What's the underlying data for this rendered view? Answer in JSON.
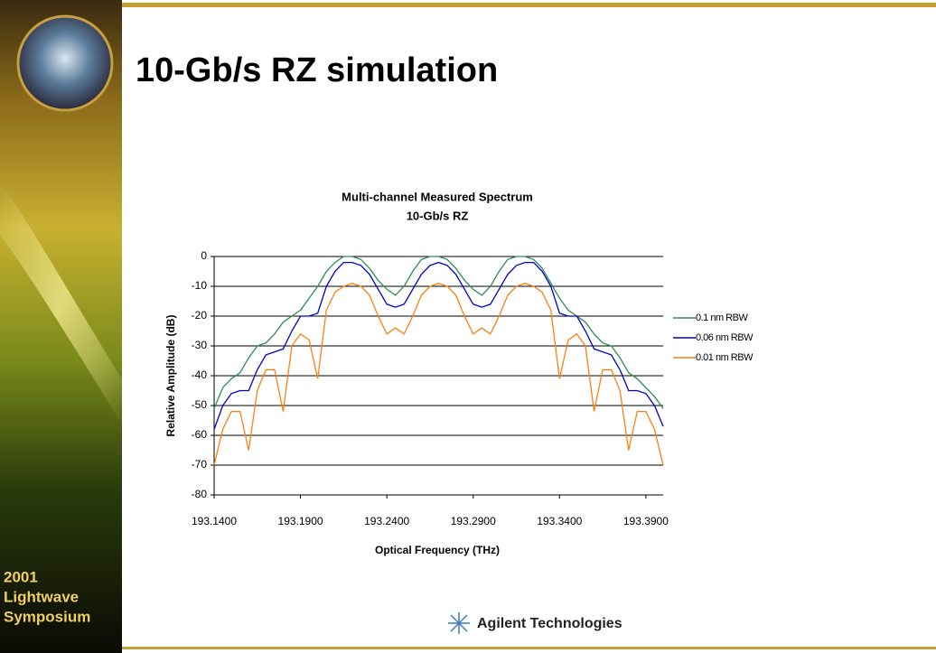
{
  "slide_title": "10-Gb/s RZ simulation",
  "sidebar_text": [
    "2001",
    "Lightwave",
    "Symposium"
  ],
  "footer_logo": "Agilent Technologies",
  "chart_data": {
    "type": "line",
    "title": [
      "Multi-channel Measured Spectrum",
      "10-Gb/s RZ"
    ],
    "x_label": "Optical  Frequency (THz)",
    "y_label": "Relative Amplitude (dB)",
    "x": [
      193.14,
      193.145,
      193.15,
      193.155,
      193.16,
      193.165,
      193.17,
      193.175,
      193.18,
      193.185,
      193.19,
      193.195,
      193.2,
      193.205,
      193.21,
      193.215,
      193.22,
      193.225,
      193.23,
      193.235,
      193.24,
      193.245,
      193.25,
      193.255,
      193.26,
      193.265,
      193.27,
      193.275,
      193.28,
      193.285,
      193.29,
      193.295,
      193.3,
      193.305,
      193.31,
      193.315,
      193.32,
      193.325,
      193.33,
      193.335,
      193.34,
      193.345,
      193.35,
      193.355,
      193.36,
      193.365,
      193.37,
      193.375,
      193.38,
      193.385,
      193.39,
      193.395,
      193.4
    ],
    "series": [
      {
        "name": "0.1 nm RBW",
        "color": "#2e8b57",
        "values": [
          -51,
          -44,
          -41,
          -39,
          -34,
          -30,
          -29,
          -26,
          -22,
          -20,
          -18,
          -14,
          -10,
          -5,
          -2,
          0,
          0,
          -1,
          -4,
          -8,
          -11,
          -13,
          -10,
          -5,
          -1,
          0,
          0,
          -1,
          -4,
          -8,
          -11,
          -13,
          -10,
          -5,
          -1,
          0,
          0,
          -1,
          -4,
          -9,
          -14,
          -18,
          -20,
          -22,
          -26,
          -29,
          -30,
          -34,
          -39,
          -41,
          -44,
          -47,
          -51
        ]
      },
      {
        "name": "0.06 nm RBW",
        "color": "#0000cc",
        "values": [
          -58,
          -50,
          -46,
          -45,
          -45,
          -38,
          -33,
          -32,
          -31,
          -25,
          -20,
          -20,
          -19,
          -10,
          -5,
          -2,
          -2,
          -3,
          -6,
          -11,
          -16,
          -17,
          -16,
          -11,
          -6,
          -3,
          -2,
          -3,
          -6,
          -11,
          -16,
          -17,
          -16,
          -11,
          -6,
          -3,
          -2,
          -2,
          -5,
          -10,
          -19,
          -20,
          -20,
          -25,
          -31,
          -32,
          -33,
          -38,
          -45,
          -45,
          -46,
          -50,
          -57
        ]
      },
      {
        "name": "0.01 nm RBW",
        "color": "#ff7f0e",
        "values": [
          -70,
          -58,
          -52,
          -52,
          -65,
          -45,
          -38,
          -38,
          -52,
          -30,
          -26,
          -28,
          -41,
          -18,
          -12,
          -10,
          -9,
          -10,
          -13,
          -20,
          -26,
          -24,
          -26,
          -20,
          -13,
          -10,
          -9,
          -10,
          -13,
          -20,
          -26,
          -24,
          -26,
          -20,
          -13,
          -10,
          -9,
          -10,
          -12,
          -18,
          -41,
          -28,
          -26,
          -30,
          -52,
          -38,
          -38,
          -45,
          -65,
          -52,
          -52,
          -58,
          -70
        ]
      }
    ],
    "xlim": [
      193.14,
      193.4
    ],
    "ylim": [
      -80,
      0
    ],
    "xticks": [
      {
        "value": 193.14,
        "label": "193.1400"
      },
      {
        "value": 193.19,
        "label": "193.1900"
      },
      {
        "value": 193.24,
        "label": "193.2400"
      },
      {
        "value": 193.29,
        "label": "193.2900"
      },
      {
        "value": 193.34,
        "label": "193.3400"
      },
      {
        "value": 193.39,
        "label": "193.3900"
      }
    ],
    "yticks": [
      0,
      -10,
      -20,
      -30,
      -40,
      -50,
      -60,
      -70,
      -80
    ],
    "grid": true,
    "legend": "right"
  }
}
